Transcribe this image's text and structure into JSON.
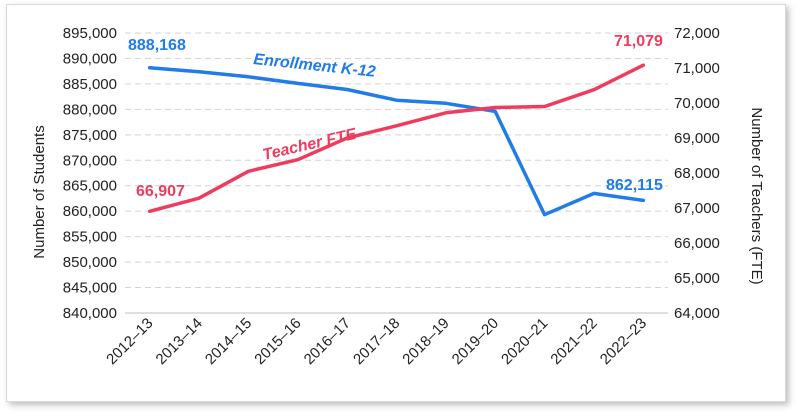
{
  "chart_data": {
    "type": "line",
    "categories": [
      "2012–13",
      "2013–14",
      "2014–15",
      "2015–16",
      "2016–17",
      "2017–18",
      "2018–19",
      "2019–20",
      "2020–21",
      "2021–22",
      "2022–23"
    ],
    "ylabel": "Number of Students",
    "y2label": "Number of Teachers (FTE)",
    "ylim": [
      840000,
      895000
    ],
    "ytick_step": 5000,
    "y2lim": [
      64000,
      72000
    ],
    "y2tick_step": 1000,
    "y_tick_labels": [
      "840,000",
      "845,000",
      "850,000",
      "855,000",
      "860,000",
      "865,000",
      "870,000",
      "875,000",
      "880,000",
      "885,000",
      "890,000",
      "895,000"
    ],
    "y2_tick_labels": [
      "64,000",
      "65,000",
      "66,000",
      "67,000",
      "68,000",
      "69,000",
      "70,000",
      "71,000",
      "72,000"
    ],
    "grid": "horizontal dashed",
    "series": [
      {
        "name": "Enrollment K-12",
        "axis": "left",
        "color": "#1f7ce8",
        "values": [
          888168,
          887400,
          886400,
          885100,
          883900,
          881800,
          881200,
          879600,
          859300,
          863500,
          862115
        ],
        "labels": {
          "start": "888,168",
          "end": "862,115"
        }
      },
      {
        "name": "Teacher FTE",
        "axis": "right",
        "color": "#ef3c5e",
        "values": [
          66907,
          67280,
          68050,
          68380,
          69000,
          69350,
          69720,
          69870,
          69900,
          70380,
          71079
        ],
        "labels": {
          "start": "66,907",
          "end": "71,079"
        }
      }
    ]
  }
}
